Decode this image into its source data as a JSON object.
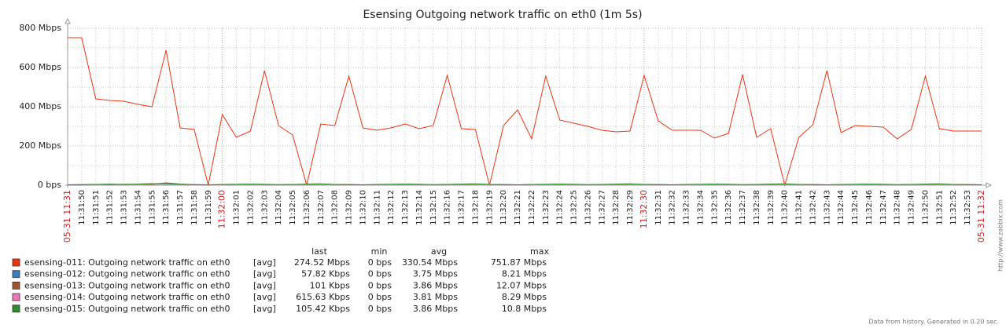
{
  "chart_data": {
    "type": "line",
    "title": "Esensing Outgoing network traffic on eth0 (1m 5s)",
    "xlim": [
      41509,
      41574
    ],
    "x": [
      41509,
      41510,
      41511,
      41512,
      41513,
      41514,
      41515,
      41516,
      41517,
      41518,
      41519,
      41520,
      41521,
      41522,
      41523,
      41524,
      41525,
      41526,
      41527,
      41528,
      41529,
      41530,
      41531,
      41532,
      41533,
      41534,
      41535,
      41536,
      41537,
      41538,
      41539,
      41540,
      41541,
      41542,
      41543,
      41544,
      41545,
      41546,
      41547,
      41548,
      41549,
      41550,
      41551,
      41552,
      41553,
      41554,
      41555,
      41556,
      41557,
      41558,
      41559,
      41560,
      41561,
      41562,
      41563,
      41564,
      41565,
      41566,
      41567,
      41568,
      41569,
      41570,
      41571,
      41572,
      41573,
      41574
    ],
    "xticks": [
      {
        "value": 41510,
        "label": "11:31:50"
      },
      {
        "value": 41511,
        "label": "11:31:51"
      },
      {
        "value": 41512,
        "label": "11:31:52"
      },
      {
        "value": 41513,
        "label": "11:31:53"
      },
      {
        "value": 41514,
        "label": "11:31:54"
      },
      {
        "value": 41515,
        "label": "11:31:55"
      },
      {
        "value": 41516,
        "label": "11:31:56"
      },
      {
        "value": 41517,
        "label": "11:31:57"
      },
      {
        "value": 41518,
        "label": "11:31:58"
      },
      {
        "value": 41519,
        "label": "11:31:59"
      },
      {
        "value": 41521,
        "label": "11:32:01"
      },
      {
        "value": 41522,
        "label": "11:32:02"
      },
      {
        "value": 41523,
        "label": "11:32:03"
      },
      {
        "value": 41524,
        "label": "11:32:04"
      },
      {
        "value": 41525,
        "label": "11:32:05"
      },
      {
        "value": 41526,
        "label": "11:32:06"
      },
      {
        "value": 41527,
        "label": "11:32:07"
      },
      {
        "value": 41528,
        "label": "11:32:08"
      },
      {
        "value": 41529,
        "label": "11:32:09"
      },
      {
        "value": 41530,
        "label": "11:32:10"
      },
      {
        "value": 41531,
        "label": "11:32:11"
      },
      {
        "value": 41532,
        "label": "11:32:12"
      },
      {
        "value": 41533,
        "label": "11:32:13"
      },
      {
        "value": 41534,
        "label": "11:32:14"
      },
      {
        "value": 41535,
        "label": "11:32:15"
      },
      {
        "value": 41536,
        "label": "11:32:16"
      },
      {
        "value": 41537,
        "label": "11:32:17"
      },
      {
        "value": 41538,
        "label": "11:32:18"
      },
      {
        "value": 41539,
        "label": "11:32:19"
      },
      {
        "value": 41540,
        "label": "11:32:20"
      },
      {
        "value": 41541,
        "label": "11:32:21"
      },
      {
        "value": 41542,
        "label": "11:32:22"
      },
      {
        "value": 41543,
        "label": "11:32:23"
      },
      {
        "value": 41544,
        "label": "11:32:24"
      },
      {
        "value": 41545,
        "label": "11:32:25"
      },
      {
        "value": 41546,
        "label": "11:32:26"
      },
      {
        "value": 41547,
        "label": "11:32:27"
      },
      {
        "value": 41548,
        "label": "11:32:28"
      },
      {
        "value": 41549,
        "label": "11:32:29"
      },
      {
        "value": 41551,
        "label": "11:32:31"
      },
      {
        "value": 41552,
        "label": "11:32:32"
      },
      {
        "value": 41553,
        "label": "11:32:33"
      },
      {
        "value": 41554,
        "label": "11:32:34"
      },
      {
        "value": 41555,
        "label": "11:32:35"
      },
      {
        "value": 41556,
        "label": "11:32:36"
      },
      {
        "value": 41557,
        "label": "11:32:37"
      },
      {
        "value": 41558,
        "label": "11:32:38"
      },
      {
        "value": 41559,
        "label": "11:32:39"
      },
      {
        "value": 41560,
        "label": "11:32:40"
      },
      {
        "value": 41561,
        "label": "11:32:41"
      },
      {
        "value": 41562,
        "label": "11:32:42"
      },
      {
        "value": 41563,
        "label": "11:32:43"
      },
      {
        "value": 41564,
        "label": "11:32:44"
      },
      {
        "value": 41565,
        "label": "11:32:45"
      },
      {
        "value": 41566,
        "label": "11:32:46"
      },
      {
        "value": 41567,
        "label": "11:32:47"
      },
      {
        "value": 41568,
        "label": "11:32:48"
      },
      {
        "value": 41569,
        "label": "11:32:49"
      },
      {
        "value": 41570,
        "label": "11:32:50"
      },
      {
        "value": 41571,
        "label": "11:32:51"
      },
      {
        "value": 41572,
        "label": "11:32:52"
      },
      {
        "value": 41573,
        "label": "11:32:53"
      }
    ],
    "xticks_major": [
      {
        "value": 41509,
        "label": "05-31 11:31"
      },
      {
        "value": 41520,
        "label": "11:32:00"
      },
      {
        "value": 41550,
        "label": "11:32:30"
      },
      {
        "value": 41574,
        "label": "05-31 11:32"
      }
    ],
    "major_tick_color": "#cc2222",
    "ylim": [
      0,
      800
    ],
    "yticks": [
      {
        "value": 0,
        "label": "0 bps"
      },
      {
        "value": 200,
        "label": "200 Mbps"
      },
      {
        "value": 400,
        "label": "400 Mbps"
      },
      {
        "value": 600,
        "label": "600 Mbps"
      },
      {
        "value": 800,
        "label": "800 Mbps"
      }
    ],
    "yminor": [
      100,
      300,
      500,
      700
    ],
    "grid": true,
    "legend_headers": [
      "last",
      "min",
      "avg",
      "max"
    ],
    "series": [
      {
        "name": "esensing-011: Outgoing network traffic on eth0",
        "color": "#ee3311",
        "function": "[avg]",
        "last": "274.52 Mbps",
        "min": "0 bps",
        "avg": "330.54 Mbps",
        "max": "751.87 Mbps",
        "values": [
          752,
          752,
          440,
          432,
          428,
          412,
          400,
          688,
          292,
          284,
          0,
          360,
          244,
          276,
          584,
          304,
          256,
          0,
          312,
          304,
          556,
          292,
          280,
          292,
          312,
          288,
          304,
          560,
          288,
          284,
          0,
          304,
          384,
          236,
          556,
          332,
          316,
          300,
          280,
          272,
          276,
          560,
          328,
          280,
          280,
          280,
          240,
          264,
          564,
          244,
          288,
          0,
          244,
          308,
          584,
          268,
          304,
          300,
          296,
          236,
          284,
          556,
          288,
          276,
          276,
          276
        ]
      },
      {
        "name": "esensing-012: Outgoing network traffic on eth0",
        "color": "#3a7ebf",
        "function": "[avg]",
        "last": "57.82 Kbps",
        "min": "0 bps",
        "avg": "3.75 Mbps",
        "max": "8.21 Mbps",
        "values": [
          1,
          1,
          3,
          6,
          2,
          3,
          2,
          3,
          4,
          3,
          2,
          2,
          3,
          4,
          3,
          2,
          3,
          2,
          3,
          3,
          3,
          2,
          2,
          3,
          4,
          3,
          2,
          3,
          2,
          3,
          3,
          3,
          2,
          2,
          3,
          4,
          3,
          2,
          3,
          2,
          3,
          3,
          3,
          2,
          2,
          3,
          4,
          3,
          2,
          3,
          2,
          3,
          3,
          3,
          2,
          2,
          3,
          4,
          3,
          2,
          3,
          2,
          3,
          3,
          3,
          2
        ]
      },
      {
        "name": "esensing-013: Outgoing network traffic on eth0",
        "color": "#a0522d",
        "function": "[avg]",
        "last": "101 Kbps",
        "min": "0 bps",
        "avg": "3.86 Mbps",
        "max": "12.07 Mbps",
        "values": [
          2,
          3,
          4,
          3,
          5,
          4,
          6,
          12,
          6,
          3,
          2,
          3,
          4,
          5,
          3,
          2,
          4,
          3,
          5,
          4,
          3,
          2,
          3,
          4,
          5,
          3,
          2,
          4,
          3,
          5,
          4,
          3,
          2,
          3,
          4,
          5,
          3,
          2,
          4,
          3,
          5,
          4,
          3,
          2,
          3,
          4,
          5,
          3,
          2,
          4,
          3,
          5,
          4,
          3,
          2,
          3,
          4,
          5,
          3,
          2,
          4,
          3,
          5,
          4,
          3,
          2
        ]
      },
      {
        "name": "esensing-014: Outgoing network traffic on eth0",
        "color": "#ee77bb",
        "function": "[avg]",
        "last": "615.63 Kbps",
        "min": "0 bps",
        "avg": "3.81 Mbps",
        "max": "8.29 Mbps",
        "values": [
          1,
          2,
          2,
          1,
          2,
          2,
          1,
          2,
          2,
          1,
          2,
          1,
          2,
          2,
          1,
          2,
          2,
          1,
          2,
          2,
          1,
          2,
          1,
          2,
          2,
          1,
          2,
          2,
          1,
          2,
          2,
          1,
          2,
          1,
          2,
          2,
          1,
          2,
          2,
          1,
          2,
          2,
          1,
          2,
          1,
          2,
          2,
          1,
          2,
          2,
          1,
          2,
          2,
          1,
          2,
          1,
          2,
          2,
          1,
          2,
          2,
          1,
          2,
          2,
          1,
          2
        ]
      },
      {
        "name": "esensing-015: Outgoing network traffic on eth0",
        "color": "#2e8b2e",
        "function": "[avg]",
        "last": "105.42 Kbps",
        "min": "0 bps",
        "avg": "3.86 Mbps",
        "max": "10.8 Mbps",
        "values": [
          2,
          3,
          4,
          5,
          4,
          6,
          8,
          9,
          5,
          3,
          1,
          4,
          5,
          6,
          5,
          3,
          4,
          6,
          7,
          4,
          3,
          2,
          4,
          5,
          6,
          5,
          3,
          4,
          6,
          7,
          4,
          3,
          2,
          4,
          5,
          6,
          5,
          3,
          4,
          6,
          7,
          4,
          3,
          2,
          4,
          5,
          6,
          5,
          3,
          4,
          6,
          7,
          4,
          3,
          2,
          4,
          5,
          6,
          5,
          3,
          4,
          6,
          7,
          4,
          3,
          2
        ]
      }
    ],
    "side_text": "http://www.zabbix.com",
    "footer": "Data from history. Generated in 0.20 sec."
  }
}
